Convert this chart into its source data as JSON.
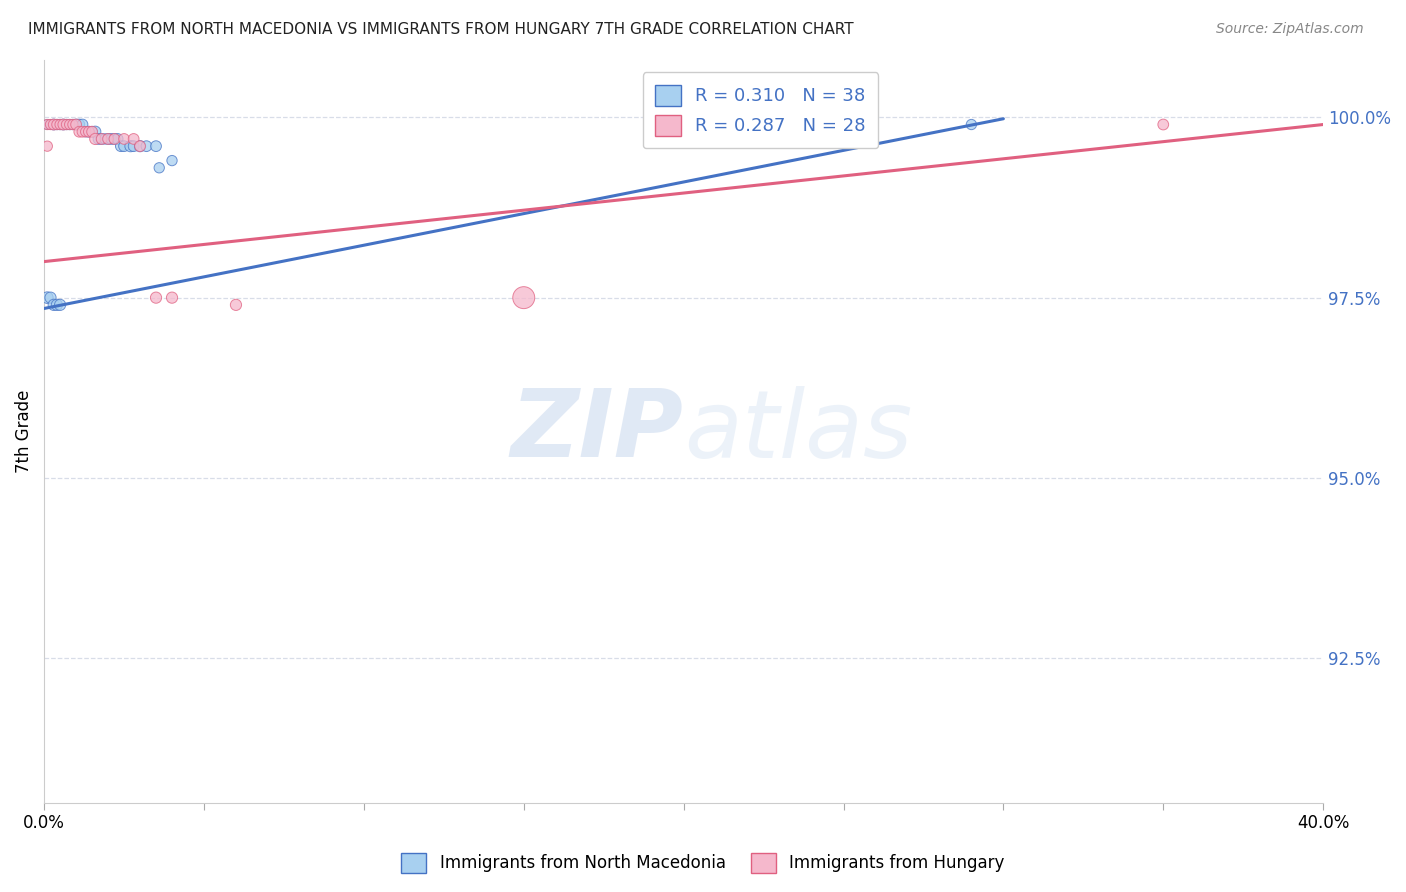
{
  "title": "IMMIGRANTS FROM NORTH MACEDONIA VS IMMIGRANTS FROM HUNGARY 7TH GRADE CORRELATION CHART",
  "source": "Source: ZipAtlas.com",
  "ylabel": "7th Grade",
  "ytick_labels": [
    "100.0%",
    "97.5%",
    "95.0%",
    "92.5%"
  ],
  "ytick_values": [
    1.0,
    0.975,
    0.95,
    0.925
  ],
  "xlim": [
    0.0,
    0.4
  ],
  "ylim": [
    0.905,
    1.008
  ],
  "blue_R": "0.310",
  "blue_N": "38",
  "pink_R": "0.287",
  "pink_N": "28",
  "blue_color": "#a8d0f0",
  "pink_color": "#f5b8cc",
  "blue_line_color": "#4472c4",
  "pink_line_color": "#e06080",
  "legend_label_blue": "Immigrants from North Macedonia",
  "legend_label_pink": "Immigrants from Hungary",
  "blue_scatter_x": [
    0.001,
    0.002,
    0.003,
    0.004,
    0.005,
    0.006,
    0.007,
    0.008,
    0.009,
    0.01,
    0.011,
    0.012,
    0.013,
    0.014,
    0.015,
    0.016,
    0.017,
    0.018,
    0.019,
    0.02,
    0.021,
    0.022,
    0.023,
    0.024,
    0.025,
    0.027,
    0.028,
    0.03,
    0.032,
    0.035,
    0.001,
    0.002,
    0.003,
    0.004,
    0.005,
    0.036,
    0.04,
    0.29
  ],
  "blue_scatter_y": [
    0.999,
    0.999,
    0.999,
    0.999,
    0.999,
    0.999,
    0.999,
    0.999,
    0.999,
    0.999,
    0.999,
    0.999,
    0.998,
    0.998,
    0.998,
    0.998,
    0.997,
    0.997,
    0.997,
    0.997,
    0.997,
    0.997,
    0.997,
    0.996,
    0.996,
    0.996,
    0.996,
    0.996,
    0.996,
    0.996,
    0.975,
    0.975,
    0.974,
    0.974,
    0.974,
    0.993,
    0.994,
    0.999
  ],
  "blue_scatter_size": [
    50,
    50,
    60,
    55,
    55,
    60,
    55,
    55,
    55,
    60,
    60,
    60,
    55,
    60,
    60,
    65,
    60,
    60,
    55,
    60,
    60,
    60,
    60,
    60,
    60,
    65,
    60,
    65,
    60,
    60,
    70,
    65,
    65,
    65,
    65,
    55,
    55,
    55
  ],
  "pink_scatter_x": [
    0.001,
    0.002,
    0.003,
    0.004,
    0.005,
    0.006,
    0.007,
    0.008,
    0.009,
    0.01,
    0.011,
    0.012,
    0.013,
    0.014,
    0.015,
    0.016,
    0.018,
    0.02,
    0.022,
    0.025,
    0.028,
    0.03,
    0.035,
    0.04,
    0.06,
    0.15,
    0.35,
    0.001
  ],
  "pink_scatter_y": [
    0.999,
    0.999,
    0.999,
    0.999,
    0.999,
    0.999,
    0.999,
    0.999,
    0.999,
    0.999,
    0.998,
    0.998,
    0.998,
    0.998,
    0.998,
    0.997,
    0.997,
    0.997,
    0.997,
    0.997,
    0.997,
    0.996,
    0.975,
    0.975,
    0.974,
    0.975,
    0.999,
    0.996
  ],
  "pink_scatter_size": [
    55,
    55,
    60,
    55,
    55,
    60,
    55,
    55,
    55,
    60,
    60,
    60,
    55,
    60,
    60,
    65,
    60,
    60,
    60,
    60,
    60,
    60,
    65,
    65,
    65,
    250,
    60,
    55
  ],
  "blue_trendline_x": [
    0.0,
    0.3
  ],
  "blue_trendline_y": [
    0.9735,
    0.9998
  ],
  "pink_trendline_x": [
    0.0,
    0.4
  ],
  "pink_trendline_y": [
    0.98,
    0.999
  ],
  "watermark_zip": "ZIP",
  "watermark_atlas": "atlas",
  "grid_color": "#d8dde8",
  "background_color": "#ffffff",
  "xtick_positions": [
    0.0,
    0.05,
    0.1,
    0.15,
    0.2,
    0.25,
    0.3,
    0.35,
    0.4
  ],
  "xtick_labels": [
    "0.0%",
    "",
    "",
    "",
    "",
    "",
    "",
    "",
    "40.0%"
  ]
}
